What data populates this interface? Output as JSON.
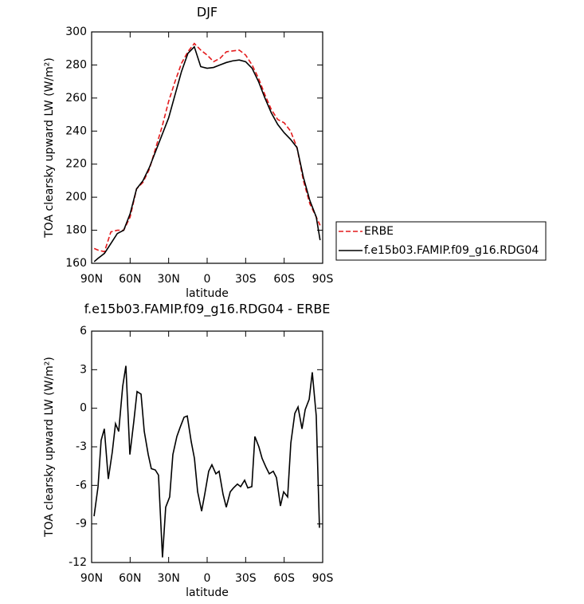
{
  "chart_data": [
    {
      "type": "line",
      "title": "DJF",
      "x_label": "latitude",
      "y_label": "TOA clearsky upward LW (W/m²)",
      "x": [
        88,
        85,
        80,
        75,
        70,
        65,
        60,
        55,
        50,
        45,
        40,
        35,
        30,
        25,
        20,
        15,
        10,
        5,
        0,
        -5,
        -10,
        -15,
        -20,
        -25,
        -30,
        -35,
        -40,
        -45,
        -50,
        -55,
        -60,
        -65,
        -70,
        -75,
        -80,
        -85,
        -88
      ],
      "series": [
        {
          "name": "ERBE",
          "color": "#e41a1c",
          "line_style": "dashed",
          "values": [
            169,
            168,
            167,
            179,
            180,
            180,
            188,
            205,
            209,
            217,
            230,
            243,
            258,
            270,
            281,
            288,
            293,
            289,
            286,
            282,
            284,
            288,
            288.5,
            289,
            286,
            280,
            272,
            262,
            253,
            247,
            245,
            240,
            230,
            210,
            196,
            188,
            183
          ]
        },
        {
          "name": "f.e15b03.FAMIP.f09_g16.RDG04",
          "color": "#000000",
          "line_style": "solid",
          "values": [
            161,
            163,
            166,
            172,
            178,
            180,
            190,
            205,
            210,
            218,
            228,
            238,
            248,
            262,
            276,
            287,
            291,
            279,
            278,
            278.5,
            280,
            281.5,
            282.5,
            283,
            282,
            278,
            270,
            260,
            251,
            244,
            239,
            235,
            230,
            212,
            198,
            188,
            174
          ]
        }
      ],
      "xlim": [
        90,
        -90
      ],
      "xticks": [
        {
          "value": 90,
          "label": "90N"
        },
        {
          "value": 60,
          "label": "60N"
        },
        {
          "value": 30,
          "label": "30N"
        },
        0,
        {
          "value": -30,
          "label": "30S"
        },
        {
          "value": -60,
          "label": "60S"
        },
        {
          "value": -90,
          "label": "90S"
        }
      ],
      "ylim": [
        160,
        300
      ],
      "yticks": [
        160,
        180,
        200,
        220,
        240,
        260,
        280,
        300
      ],
      "legend": "outside-right"
    },
    {
      "type": "line",
      "title": "f.e15b03.FAMIP.f09_g16.RDG04 - ERBE",
      "x_label": "latitude",
      "y_label": "TOA clearsky upward LW (W/m²)",
      "x": [
        88.1,
        85.0,
        82.6,
        80.1,
        77.0,
        73.9,
        71.4,
        68.9,
        65.8,
        63.3,
        60.2,
        57.1,
        54.6,
        51.5,
        49.0,
        45.9,
        43.5,
        40.4,
        37.9,
        34.8,
        32.3,
        29.2,
        26.7,
        23.6,
        21.1,
        18.0,
        15.5,
        12.4,
        9.9,
        7.4,
        4.3,
        1.9,
        -1.2,
        -3.7,
        -6.8,
        -9.3,
        -12.4,
        -14.9,
        -18.0,
        -20.5,
        -23.6,
        -26.1,
        -29.2,
        -31.7,
        -34.8,
        -37.2,
        -40.3,
        -42.8,
        -45.9,
        -48.4,
        -51.5,
        -54.0,
        -57.1,
        -59.6,
        -62.7,
        -65.2,
        -68.3,
        -70.8,
        -73.9,
        -76.4,
        -79.5,
        -81.9,
        -85.0,
        -87.5
      ],
      "series": [
        {
          "color": "#000000",
          "line_style": "solid",
          "values": [
            -8.4,
            -6.1,
            -2.5,
            -1.6,
            -5.5,
            -3.4,
            -1.2,
            -1.8,
            1.7,
            3.3,
            -3.6,
            -1.0,
            1.3,
            1.1,
            -1.8,
            -3.6,
            -4.7,
            -4.8,
            -5.2,
            -11.6,
            -7.7,
            -6.9,
            -3.6,
            -2.2,
            -1.5,
            -0.7,
            -0.6,
            -2.6,
            -3.9,
            -6.5,
            -8.0,
            -6.7,
            -4.9,
            -4.4,
            -5.1,
            -4.9,
            -6.7,
            -7.7,
            -6.5,
            -6.2,
            -5.9,
            -6.1,
            -5.6,
            -6.2,
            -6.1,
            -2.2,
            -3.0,
            -3.9,
            -4.6,
            -5.1,
            -4.9,
            -5.4,
            -7.6,
            -6.5,
            -6.9,
            -2.7,
            -0.4,
            0.1,
            -1.6,
            -0.1,
            0.7,
            2.8,
            -0.6,
            -9.3
          ]
        }
      ],
      "xlim": [
        90,
        -90
      ],
      "xticks": [
        {
          "value": 90,
          "label": "90N"
        },
        {
          "value": 60,
          "label": "60N"
        },
        {
          "value": 30,
          "label": "30N"
        },
        0,
        {
          "value": -30,
          "label": "30S"
        },
        {
          "value": -60,
          "label": "60S"
        },
        {
          "value": -90,
          "label": "90S"
        }
      ],
      "ylim": [
        -12,
        6
      ],
      "yticks": [
        -12,
        -9,
        -6,
        -3,
        0,
        3,
        6
      ]
    }
  ]
}
